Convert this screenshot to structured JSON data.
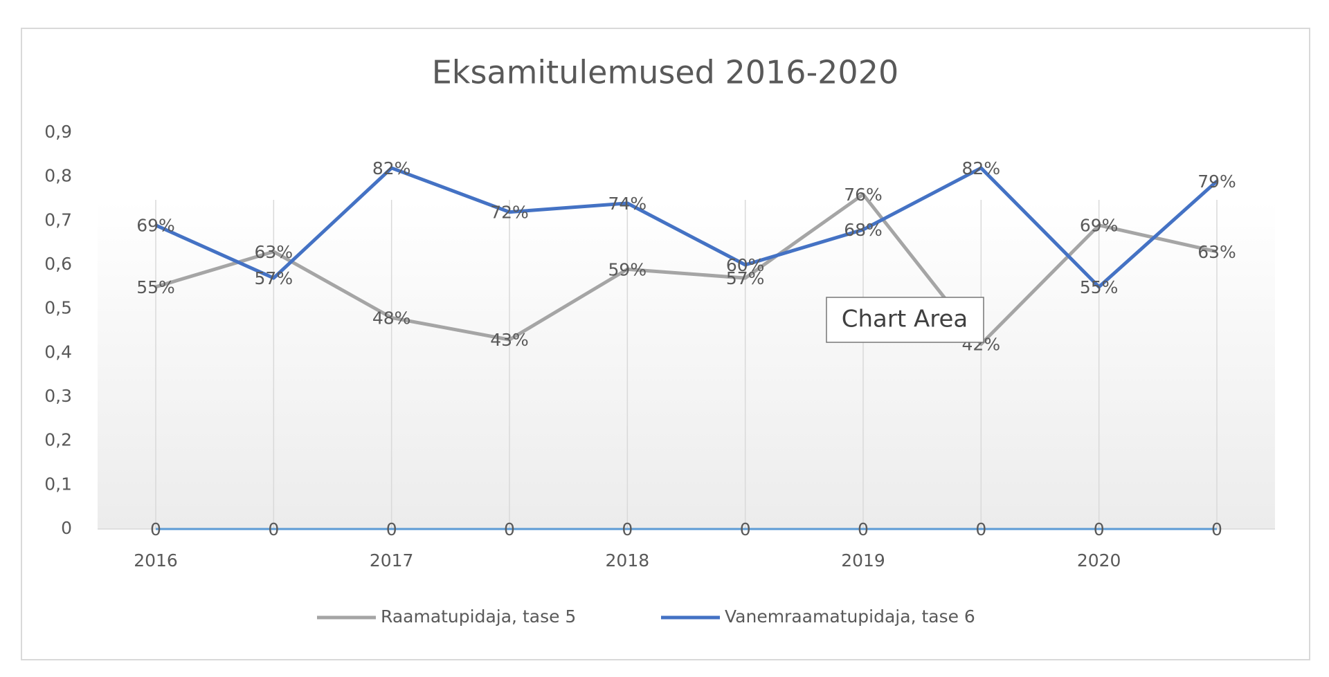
{
  "chart_data": {
    "type": "line",
    "title": "Eksamitulemused 2016-2020",
    "categories": [
      "2016",
      null,
      "2017",
      null,
      "2018",
      null,
      "2019",
      null,
      "2020",
      null
    ],
    "series": [
      {
        "name": "Raamatupidaja, tase 5",
        "color": "#a5a5a5",
        "values": [
          0.55,
          0.63,
          0.48,
          0.43,
          0.59,
          0.57,
          0.76,
          0.42,
          0.69,
          0.63
        ],
        "value_labels": [
          "55%",
          "63%",
          "48%",
          "43%",
          "59%",
          "57%",
          "76%",
          "42%",
          "69%",
          "63%"
        ]
      },
      {
        "name": "Vanemraamatupidaja, tase 6",
        "color": "#4472c4",
        "values": [
          0.69,
          0.57,
          0.82,
          0.72,
          0.74,
          0.6,
          0.68,
          0.82,
          0.55,
          0.79
        ],
        "value_labels": [
          "69%",
          "57%",
          "82%",
          "72%",
          "74%",
          "60%",
          "68%",
          "82%",
          "55%",
          "79%"
        ]
      },
      {
        "color": "#5b9bd5",
        "values": [
          0,
          0,
          0,
          0,
          0,
          0,
          0,
          0,
          0,
          0
        ]
      }
    ],
    "ylim": [
      0,
      0.9
    ],
    "yticks": [
      0,
      {
        "value": 0.1,
        "label": "0,1"
      },
      {
        "value": 0.2,
        "label": "0,2"
      },
      {
        "value": 0.3,
        "label": "0,3"
      },
      {
        "value": 0.4,
        "label": "0,4"
      },
      {
        "value": 0.5,
        "label": "0,5"
      },
      {
        "value": 0.6,
        "label": "0,6"
      },
      {
        "value": 0.7,
        "label": "0,7"
      },
      {
        "value": 0.8,
        "label": "0,8"
      },
      {
        "value": 0.9,
        "label": "0,9"
      }
    ],
    "grid": true,
    "tooltip": "Chart Area"
  }
}
